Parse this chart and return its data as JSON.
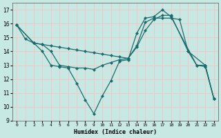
{
  "xlabel": "Humidex (Indice chaleur)",
  "bg_color": "#c8e8e4",
  "grid_color": "#f0c8c8",
  "line_color": "#1a6b6b",
  "xlim": [
    -0.5,
    23.5
  ],
  "ylim": [
    9,
    17.5
  ],
  "xticks": [
    0,
    1,
    2,
    3,
    4,
    5,
    6,
    7,
    8,
    9,
    10,
    11,
    12,
    13,
    14,
    15,
    16,
    17,
    18,
    19,
    20,
    21,
    22,
    23
  ],
  "yticks": [
    9,
    10,
    11,
    12,
    13,
    14,
    15,
    16,
    17
  ],
  "series": [
    {
      "x": [
        0,
        1,
        2,
        3,
        4,
        5,
        6,
        7,
        8,
        9,
        10,
        11,
        12,
        13,
        14,
        15,
        16,
        17,
        18,
        21,
        22,
        23
      ],
      "y": [
        15.9,
        14.9,
        14.6,
        14.0,
        13.0,
        12.9,
        12.8,
        11.7,
        10.5,
        9.5,
        10.8,
        11.9,
        13.3,
        13.4,
        15.3,
        16.4,
        16.5,
        17.0,
        16.5,
        13.0,
        12.9,
        10.6
      ]
    },
    {
      "x": [
        0,
        2,
        3,
        4,
        5,
        6,
        7,
        8,
        9,
        10,
        11,
        12,
        13,
        14,
        15,
        16,
        17,
        18,
        20,
        22,
        23
      ],
      "y": [
        15.9,
        14.6,
        14.5,
        14.0,
        13.0,
        12.9,
        12.8,
        12.8,
        12.7,
        13.0,
        13.2,
        13.4,
        13.5,
        14.3,
        15.5,
        16.3,
        16.6,
        16.6,
        14.0,
        13.0,
        10.6
      ]
    },
    {
      "x": [
        0,
        2,
        3,
        4,
        5,
        6,
        7,
        8,
        9,
        10,
        11,
        12,
        13,
        14,
        15,
        16,
        17,
        18,
        19,
        20,
        21,
        22,
        23
      ],
      "y": [
        15.9,
        14.6,
        14.5,
        14.4,
        14.3,
        14.2,
        14.1,
        14.0,
        13.9,
        13.8,
        13.7,
        13.6,
        13.5,
        14.4,
        16.1,
        16.4,
        16.4,
        16.4,
        16.3,
        14.0,
        13.0,
        13.0,
        10.6
      ]
    }
  ]
}
